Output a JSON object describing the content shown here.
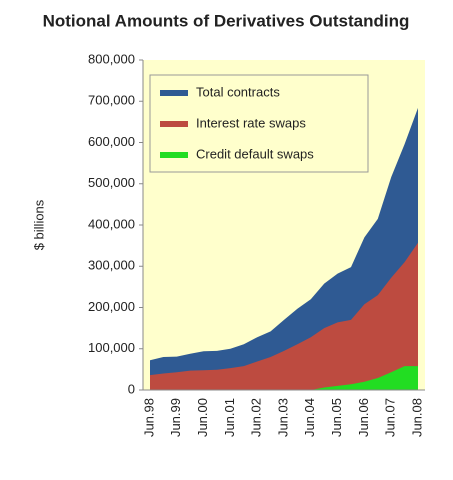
{
  "chart_data": {
    "type": "area",
    "title": "Notional Amounts of Derivatives Outstanding",
    "y_label": "$ billions",
    "categories": [
      "Jun.98",
      null,
      "Jun.99",
      null,
      "Jun.00",
      null,
      "Jun.01",
      null,
      "Jun.02",
      null,
      "Jun.03",
      null,
      "Jun.04",
      null,
      "Jun.05",
      null,
      "Jun.06",
      null,
      "Jun.07",
      null,
      "Jun.08"
    ],
    "series": [
      {
        "name": "Total contracts",
        "color": "#2f5a93",
        "values": [
          72000,
          80000,
          81000,
          88000,
          94000,
          95000,
          100000,
          111000,
          128000,
          142000,
          170000,
          197000,
          220000,
          258000,
          282000,
          298000,
          370000,
          415000,
          516000,
          596000,
          684000
        ]
      },
      {
        "name": "Interest rate swaps",
        "color": "#bd4b40",
        "values": [
          36000,
          40000,
          43000,
          47000,
          48000,
          49000,
          53000,
          58000,
          69000,
          80000,
          95000,
          111000,
          128000,
          150000,
          164000,
          170000,
          208000,
          230000,
          272000,
          310000,
          357000
        ]
      },
      {
        "name": "Credit default swaps",
        "color": "#22dd22",
        "values": [
          0,
          0,
          0,
          0,
          0,
          0,
          0,
          0,
          0,
          0,
          0,
          0,
          0,
          6000,
          10000,
          14000,
          20000,
          29000,
          43000,
          58000,
          58000
        ]
      }
    ],
    "ylim": [
      0,
      800000
    ],
    "yticks": [
      0,
      {
        "value": 100000,
        "label": "100,000"
      },
      {
        "value": 200000,
        "label": "200,000"
      },
      {
        "value": 300000,
        "label": "300,000"
      },
      {
        "value": 400000,
        "label": "400,000"
      },
      {
        "value": 500000,
        "label": "500,000"
      },
      {
        "value": 600000,
        "label": "600,000"
      },
      {
        "value": 700000,
        "label": "700,000"
      },
      {
        "value": 800000,
        "label": "800,000"
      }
    ],
    "background": "#ffffcc",
    "legend": "top-left"
  }
}
